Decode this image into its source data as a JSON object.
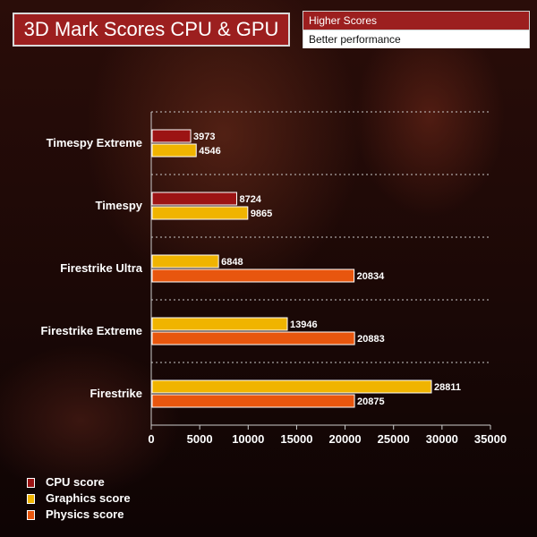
{
  "title": "3D Mark Scores CPU & GPU",
  "top_legend": {
    "line1": "Higher Scores",
    "line2": "Better performance"
  },
  "colors": {
    "cpu": "#9c1414",
    "graphics": "#f0b400",
    "physics": "#e8560e",
    "title_bg": "#9c1f1f"
  },
  "chart_data": {
    "type": "bar",
    "orientation": "horizontal",
    "categories": [
      "Timespy Extreme",
      "Timespy",
      "Firestrike Ultra",
      "Firestrike Extreme",
      "Firestrike"
    ],
    "groups": [
      {
        "category": "Timespy Extreme",
        "bars": [
          {
            "series": "CPU score",
            "value": 3973
          },
          {
            "series": "Graphics score",
            "value": 4546
          }
        ]
      },
      {
        "category": "Timespy",
        "bars": [
          {
            "series": "CPU score",
            "value": 8724
          },
          {
            "series": "Graphics score",
            "value": 9865
          }
        ]
      },
      {
        "category": "Firestrike Ultra",
        "bars": [
          {
            "series": "Graphics score",
            "value": 6848
          },
          {
            "series": "Physics score",
            "value": 20834
          }
        ]
      },
      {
        "category": "Firestrike Extreme",
        "bars": [
          {
            "series": "Graphics score",
            "value": 13946
          },
          {
            "series": "Physics score",
            "value": 20883
          }
        ]
      },
      {
        "category": "Firestrike",
        "bars": [
          {
            "series": "Graphics score",
            "value": 28811
          },
          {
            "series": "Physics score",
            "value": 20875
          }
        ]
      }
    ],
    "series": [
      {
        "name": "CPU score",
        "color": "#9c1414"
      },
      {
        "name": "Graphics score",
        "color": "#f0b400"
      },
      {
        "name": "Physics score",
        "color": "#e8560e"
      }
    ],
    "xlim": [
      0,
      35000
    ],
    "xticks": [
      0,
      5000,
      10000,
      15000,
      20000,
      25000,
      30000,
      35000
    ],
    "grid": "dotted horizontal separators",
    "legend_position": "bottom-left"
  }
}
